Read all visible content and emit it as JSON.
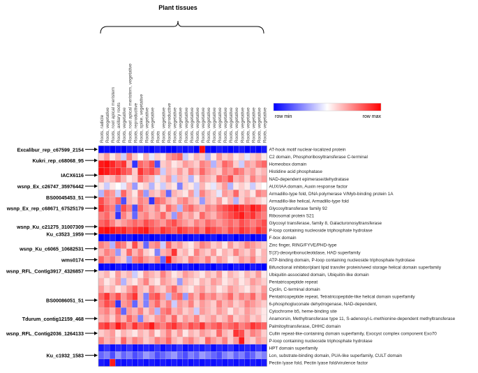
{
  "chart_data": {
    "type": "heatmap",
    "title": "Plant tissues",
    "legend": {
      "low_label": "row min",
      "high_label": "row max",
      "colors": {
        "low": "#0000ff",
        "mid": "#ffffff",
        "high": "#ff0000"
      }
    },
    "columns": [
      "Roots, radicle",
      "Roots, vegetative",
      "Roots, root apical meristem",
      "Roots, axillary roots",
      "Roots, vegetative",
      "Roots, root apical meristem, vegetative",
      "Roots, reproductive",
      "Roots, spike, vegetative",
      "Roots, vegetative",
      "Roots, vegetative",
      "Roots",
      "Roots, vegetative",
      "Roots, reproductive",
      "Roots, vegetative",
      "Roots, vegetative",
      "Roots, vegetative",
      "Roots, vegetative",
      "Roots, vegetative",
      "Roots, vegetative",
      "Roots, vegetative",
      "Roots, vegetative",
      "Roots, vegetative",
      "Roots, vegetative",
      "Roots, vegetative",
      "Roots, vegetative",
      "Roots, vegetative",
      "Roots, vegetative",
      "Roots, vegetative",
      "Roots, vegetative",
      "Roots, vegetative"
    ],
    "rows": [
      "AT-hook motif nuclear-localized protein",
      "C2 domain, Phosphoribosyltransferase C-terminal",
      "Homeobox domain",
      "Histidine acid phosphatase",
      "NAD-dependent epimerase/dehydratase",
      "AUX/IAA domain, Auxin response factor",
      "Armadillo-type fold, DNA polymerase V/Myb-binding protein 1A",
      "Armadillo-like helical,  Armadillo-type fold",
      "Glycosyltransferase family 92",
      " Ribosomal protein S21",
      "Glycosyl transferase, family 8, Galacturonosyltransferase",
      "P-loop containing nucleoside triphosphate hydrolase",
      "F-box domain",
      "Zinc finger, RING/FYVE/PHD-type",
      "5'(3')-deoxyribonucleotidase,  HAD superfamily",
      "ATP-binding domain, P-loop containing nucleoside triphosphate hydrolase",
      "Bifunctional inhibitor/plant lipid transfer protein/seed storage helical domain superfamily",
      "Ubiquitin-associated domain, Ubiquitin-like domain",
      "Pentatricopeptide repeat",
      "Cyclin, C-terminal domain",
      "Pentatricopeptide repeat, Tetratricopeptide-like helical domain superfamily",
      "6-phosphogluconate dehydrogenase, NAD-dependent,",
      "Cytochrome b5, heme-binding site",
      "Anamorsin, Methyltransferase type 11,  S-adenosyl-L-methionine-dependent methyltransferase",
      "Palmitoyltransferase, DHHC domain",
      "Cullin repeat-like-containing domain superfamily,  Exocyst complex component Exo70",
      "P-loop containing nucleoside triphosphate hydrolase",
      "HPT domain superfamily",
      "Lon, substrate-binding domain, PUA-like superfamily, CULT domain",
      "Pectin lyase fold, Pectin lyase fold/virulence factor"
    ],
    "markers": [
      {
        "name": "Excalibur_rep_c67599_2154",
        "row": 0.5
      },
      {
        "name": "Kukri_rep_c68068_95",
        "row": 2
      },
      {
        "name": "IACX6116",
        "row": 4
      },
      {
        "name": "wsnp_Ex_c26747_35976442",
        "row": 5.5
      },
      {
        "name": "BS00045453_51",
        "row": 7
      },
      {
        "name": "wsnp_Ex_rep_c68671_67525179",
        "row": 8.5
      },
      {
        "name": "wsnp_Ku_c21275_31007309",
        "row": 11
      },
      {
        "name": "Ku_c3523_1959",
        "row": 12
      },
      {
        "name": "wsnp_Ku_c6065_10682531",
        "row": 14
      },
      {
        "name": "wms0174",
        "row": 15.5
      },
      {
        "name": "wsnp_RFL_Contig3917_4326857",
        "row": 17
      },
      {
        "name": "BS00086051_51",
        "row": 21
      },
      {
        "name": "Tdurum_contig12159_468",
        "row": 23.5
      },
      {
        "name": "wsnp_RFL_Contig2036_1264133",
        "row": 25.5
      },
      {
        "name": "Ku_c1932_1583",
        "row": 28.5
      }
    ],
    "values": [
      [
        -1,
        -0.95,
        -1,
        -0.95,
        -1,
        -0.9,
        -0.95,
        -0.85,
        -0.95,
        -1,
        -0.9,
        -0.95,
        -1,
        -1,
        -0.9,
        -0.95,
        -0.9,
        -1,
        0.95,
        -0.95,
        -1,
        -0.9,
        -0.95,
        -1,
        -0.95,
        -0.9,
        -1,
        -0.95,
        -1,
        -0.9
      ],
      [
        0.2,
        0.4,
        0.1,
        0.3,
        -0.2,
        0.5,
        0.2,
        0,
        0.3,
        -0.1,
        0.2,
        0.1,
        0.4,
        0.5,
        0.6,
        -0.2,
        0.1,
        0.3,
        0.2,
        -0.3,
        0.1,
        0.4,
        0.2,
        0.3,
        0.1,
        0.2,
        -0.1,
        0.2,
        0.3,
        0.1
      ],
      [
        0.9,
        0.95,
        0.85,
        0.7,
        0.8,
        0.3,
        -0.8,
        0.6,
        0.5,
        0.7,
        -0.7,
        0.2,
        0.3,
        0.1,
        0.2,
        0.4,
        0.3,
        0.2,
        0.5,
        0.4,
        -0.3,
        0.3,
        0.6,
        0.5,
        0.2,
        -0.2,
        0.4,
        0.3,
        0.5,
        0.6
      ],
      [
        0.95,
        0.9,
        0.8,
        0.85,
        0.7,
        0.6,
        0.2,
        0.8,
        0.6,
        0.7,
        0.5,
        -0.2,
        0.3,
        0.2,
        0.4,
        0.2,
        0.5,
        0.3,
        0.6,
        0.4,
        0.3,
        0.2,
        0.5,
        0.4,
        0.6,
        0.5,
        0.3,
        0.4,
        0.2,
        0.3
      ],
      [
        0.4,
        0.2,
        0.3,
        0.5,
        0.3,
        0.1,
        0.2,
        0.6,
        0.4,
        0.3,
        -0.1,
        0.2,
        0.4,
        -0.2,
        0.3,
        0.2,
        -0.3,
        0.1,
        0.4,
        0.3,
        0.2,
        0.6,
        0.5,
        0.7,
        0.3,
        0.4,
        0.2,
        0.5,
        0.3,
        0.4
      ],
      [
        0.1,
        -0.2,
        0.1,
        0,
        -0.1,
        0.3,
        -0.4,
        0.1,
        0.2,
        -0.3,
        0.1,
        -0.2,
        0.2,
        0.1,
        -0.5,
        0.2,
        0.1,
        -0.2,
        0.3,
        0.1,
        -0.1,
        0.2,
        0.4,
        -0.3,
        0.1,
        0.2,
        0.1,
        -0.2,
        0.1,
        0
      ],
      [
        -0.3,
        0.5,
        0.4,
        -0.2,
        0.6,
        0.3,
        0.1,
        0.5,
        -0.4,
        0.3,
        0.2,
        0.4,
        -0.6,
        0.3,
        0.2,
        0.1,
        0.4,
        -0.2,
        0.5,
        0.3,
        0.2,
        -0.1,
        0.4,
        0.3,
        0.6,
        0.2,
        0.3,
        0.1,
        0.5,
        0.4
      ],
      [
        0.7,
        0.5,
        0.4,
        0.6,
        -0.7,
        0.3,
        0.2,
        0.5,
        0.4,
        -0.8,
        0.6,
        0.5,
        0.3,
        0.2,
        0.4,
        0.5,
        0.3,
        0.2,
        -0.4,
        0.3,
        0.2,
        0.4,
        0.1,
        0.3,
        -0.3,
        0.2,
        0.4,
        0.3,
        0.2,
        0.1
      ],
      [
        0.8,
        0.6,
        0.5,
        -0.6,
        0.7,
        0.5,
        -0.7,
        0.6,
        0.4,
        0.3,
        0.5,
        0.2,
        0.6,
        0.4,
        -0.3,
        0.5,
        0.6,
        0.4,
        0.3,
        0.5,
        0.4,
        0.6,
        0.7,
        0.8,
        0.9,
        0.8,
        0.7,
        0.9,
        0.8,
        0.6
      ],
      [
        0.5,
        0.6,
        0.4,
        -0.8,
        0.5,
        0.3,
        -0.6,
        0.4,
        0.5,
        0.3,
        0.4,
        0.6,
        0.3,
        -0.4,
        0.5,
        0.3,
        0.4,
        0.2,
        0.6,
        0.4,
        0.3,
        0.5,
        0.6,
        0.7,
        0.8,
        0.9,
        0.7,
        0.8,
        0.6,
        0.5
      ],
      [
        0.6,
        0.7,
        0.5,
        0.3,
        0.4,
        0.5,
        0.6,
        0.5,
        0.7,
        0.6,
        0.5,
        0.4,
        0.6,
        0.7,
        0.5,
        0.4,
        0.3,
        0.5,
        0.4,
        0.6,
        0.5,
        0.4,
        0.5,
        0.6,
        0.5,
        0.7,
        0.6,
        0.5,
        0.6,
        0.7
      ],
      [
        0.9,
        0.95,
        0.9,
        0.8,
        0.85,
        0.7,
        0.8,
        0.85,
        0.9,
        0.7,
        0.6,
        0.8,
        0.7,
        0.6,
        0.8,
        0.7,
        0.6,
        0.7,
        0.5,
        0.8,
        0.7,
        0.6,
        0.5,
        0.7,
        0.6,
        0.8,
        0.7,
        0.6,
        0.8,
        0.7
      ],
      [
        -1,
        -0.95,
        -0.9,
        -1,
        -0.95,
        -0.9,
        -1,
        -0.95,
        -0.9,
        -1,
        -0.95,
        -0.9,
        -1,
        -0.95,
        -0.9,
        -1,
        -0.95,
        -0.9,
        -1,
        -0.95,
        -0.9,
        -1,
        -0.95,
        -0.9,
        -1,
        -0.95,
        -0.9,
        -1,
        -0.95,
        -0.9
      ],
      [
        0.5,
        0.4,
        -0.3,
        0.6,
        0.5,
        0.2,
        0.7,
        0.3,
        -0.6,
        0.4,
        0.5,
        -0.2,
        0.6,
        0.3,
        0.4,
        0.2,
        0.1,
        0.3,
        0.5,
        0.4,
        0.2,
        0.3,
        0.1,
        0.4,
        0.2,
        0.3,
        0.5,
        0.4,
        0.3,
        0.2
      ],
      [
        0.3,
        0.5,
        0.4,
        -0.4,
        0.2,
        0.6,
        0.3,
        0.5,
        0.2,
        0.1,
        -0.5,
        0.3,
        0.4,
        0.8,
        0.2,
        0.3,
        0.1,
        0.5,
        0.3,
        0.2,
        0.4,
        0.1,
        0.3,
        0.2,
        0.5,
        0.3,
        0.2,
        0.4,
        0.1,
        0.3
      ],
      [
        0.6,
        0.4,
        0.5,
        0.3,
        0.2,
        -0.4,
        0.5,
        0.6,
        0.4,
        0.3,
        0.5,
        -0.6,
        0.9,
        0.4,
        0.3,
        0.2,
        0.5,
        0.4,
        0.3,
        0.5,
        0.2,
        0.4,
        0.3,
        0.1,
        0.2,
        0.4,
        0.3,
        0.5,
        0.2,
        0.3
      ],
      [
        -1,
        -0.95,
        -1,
        -0.9,
        -0.95,
        -1,
        -0.9,
        -0.95,
        -1,
        -0.9,
        -0.95,
        -1,
        -0.9,
        -0.95,
        -1,
        -0.9,
        -0.95,
        -1,
        -0.9,
        -0.95,
        -1,
        -0.9,
        -0.95,
        -1,
        -0.9,
        -0.95,
        -1,
        -0.9,
        -0.95,
        -1
      ],
      [
        0.2,
        0.3,
        0.1,
        0.4,
        0.2,
        0.3,
        -0.2,
        0.1,
        0.4,
        0.3,
        0.2,
        0.5,
        0.3,
        0.1,
        0.2,
        0.4,
        0.3,
        0.2,
        0.1,
        0.3,
        0.2,
        0.4,
        0.1,
        0.3,
        0.2,
        0.1,
        0.3,
        0.2,
        0.4,
        0.1
      ],
      [
        0.3,
        0.1,
        0.2,
        0.4,
        -0.3,
        0.2,
        0.1,
        0.3,
        0.5,
        0.2,
        0.1,
        0.4,
        0.3,
        0.2,
        -0.4,
        0.3,
        0.2,
        0.1,
        0.3,
        0.2,
        0.4,
        0.3,
        0.1,
        0.2,
        0.3,
        0.1,
        0.2,
        0.4,
        0.3,
        0.2
      ],
      [
        0.4,
        0.2,
        0.3,
        0.1,
        0.2,
        0.4,
        0.6,
        0.3,
        0.2,
        0.5,
        0.3,
        0.2,
        0.4,
        0.6,
        0.3,
        0.2,
        0.1,
        0.3,
        0.4,
        0.2,
        0.3,
        0.1,
        0.2,
        0.4,
        0.3,
        0.2,
        0.1,
        0.3,
        0.2,
        0.4
      ],
      [
        0.6,
        0.8,
        0.5,
        0.7,
        0.4,
        0.6,
        0.8,
        0.3,
        -0.5,
        0.6,
        0.7,
        0.4,
        -0.3,
        0.5,
        0.6,
        -0.4,
        0.5,
        0.3,
        0.6,
        0.4,
        0.5,
        0.3,
        0.4,
        0.6,
        0.3,
        0.5,
        0.4,
        0.6,
        0.3,
        0.5
      ],
      [
        0.5,
        0.7,
        0.6,
        -0.8,
        0.4,
        0.5,
        -0.6,
        0.3,
        -0.5,
        0.4,
        0.6,
        0.3,
        0.5,
        -0.2,
        0.4,
        0.3,
        0.5,
        0.2,
        0.4,
        0.3,
        0.2,
        0.5,
        0.3,
        0.4,
        0.2,
        0.3,
        0.5,
        0.4,
        0.3,
        0.2
      ],
      [
        0.4,
        0.5,
        0.3,
        0.6,
        -0.6,
        0.4,
        0.3,
        0.5,
        0.2,
        0.4,
        -0.3,
        0.5,
        0.6,
        0.3,
        0.4,
        0.2,
        0.3,
        -0.2,
        0.4,
        0.3,
        0.2,
        0.4,
        0.3,
        0.1,
        0.3,
        0.2,
        0.4,
        0.3,
        0.2,
        0.1
      ],
      [
        0.3,
        0.4,
        0.2,
        0.5,
        0.3,
        0.6,
        0.4,
        -0.5,
        0.3,
        0.2,
        0.4,
        0.5,
        0.3,
        0.6,
        0.2,
        0.4,
        0.3,
        0.5,
        0.2,
        0.3,
        0.4,
        0.2,
        0.3,
        0.5,
        0.2,
        0.3,
        0.4,
        0.2,
        0.3,
        0.1
      ],
      [
        0.7,
        0.8,
        0.6,
        0.9,
        0.7,
        0.5,
        0.8,
        0.6,
        0.7,
        0.9,
        0.6,
        0.5,
        0.7,
        0.8,
        0.6,
        0.5,
        0.7,
        0.6,
        0.8,
        0.5,
        0.6,
        0.7,
        0.5,
        0.6,
        0.7,
        0.5,
        0.6,
        0.8,
        0.7,
        0.6
      ],
      [
        0.2,
        0.3,
        0.4,
        0.1,
        0.3,
        0.2,
        0.1,
        0.3,
        0.2,
        0.4,
        0.1,
        0.3,
        0.5,
        0.2,
        0.4,
        0.1,
        0.3,
        0.2,
        0.4,
        0.3,
        0.2,
        0.6,
        0.3,
        0.2,
        0.8,
        0.7,
        0.3,
        0.5,
        0.4,
        0.2
      ],
      [
        0.5,
        0.3,
        0.4,
        0.2,
        0.6,
        0.3,
        0.5,
        0.4,
        0.2,
        0.3,
        0.5,
        0.4,
        0.6,
        0.3,
        0.2,
        0.4,
        0.5,
        0.3,
        0.2,
        0.6,
        0.4,
        0.3,
        0.5,
        0.2,
        0.4,
        0.9,
        0.3,
        0.2,
        0.4,
        0.3
      ],
      [
        -0.9,
        -0.8,
        -0.95,
        -0.85,
        -0.9,
        -0.8,
        -0.95,
        -0.9,
        -0.85,
        -0.9,
        -0.8,
        -0.95,
        -0.85,
        -0.9,
        -0.8,
        -0.95,
        -0.9,
        -0.85,
        -0.9,
        -0.8,
        -0.95,
        -0.85,
        -0.9,
        -0.8,
        -0.95,
        -0.9,
        -0.85,
        -0.9,
        -0.8,
        -0.95
      ],
      [
        -0.6,
        -0.5,
        -0.7,
        -0.4,
        -0.6,
        -0.5,
        -0.7,
        -0.6,
        -0.4,
        -0.5,
        -0.7,
        -0.6,
        -0.5,
        -0.4,
        -0.6,
        -0.7,
        -0.5,
        -0.6,
        -0.4,
        -0.5,
        -0.6,
        -0.7,
        -0.5,
        -0.4,
        -0.6,
        -0.5,
        -0.7,
        -0.6,
        -0.4,
        -0.5
      ],
      [
        -0.9,
        -0.95,
        0.9,
        -0.9,
        -0.95,
        -0.9,
        -0.95,
        -0.9,
        -0.95,
        -0.9,
        -0.95,
        -0.9,
        -0.95,
        -0.9,
        -0.95,
        -0.9,
        -0.95,
        -0.9,
        -0.95,
        -0.9,
        -0.95,
        -0.9,
        -0.95,
        -0.9,
        -0.95,
        -0.9,
        -0.95,
        -0.9,
        -0.95,
        -0.9
      ]
    ]
  }
}
